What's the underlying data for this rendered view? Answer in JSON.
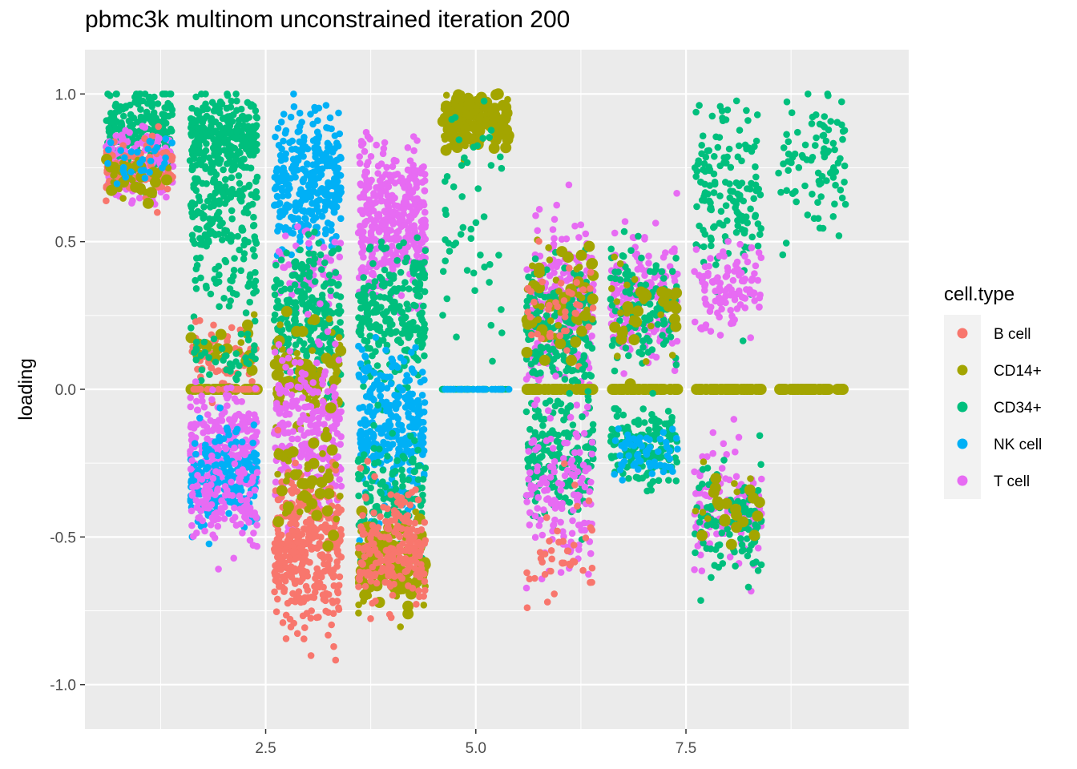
{
  "chart_data": {
    "type": "scatter",
    "title": "pbmc3k multinom unconstrained iteration 200",
    "xlabel": "",
    "ylabel": "loading",
    "xlim": [
      0.35,
      10.15
    ],
    "ylim": [
      -1.15,
      1.15
    ],
    "x_ticks": [
      2.5,
      5.0,
      7.5
    ],
    "x_tick_labels": [
      "2.5",
      "5.0",
      "7.5"
    ],
    "y_ticks": [
      1.0,
      0.5,
      0.0,
      -0.5,
      -1.0
    ],
    "y_tick_labels": [
      "1.0",
      "0.5",
      "0.0",
      "-0.5",
      "-1.0"
    ],
    "grid": true,
    "background": "#ebebeb",
    "legend": {
      "title": "cell.type",
      "position": "right",
      "entries": [
        {
          "label": "B cell",
          "color": "#F8766D"
        },
        {
          "label": "CD14+",
          "color": "#A3A500"
        },
        {
          "label": "CD34+",
          "color": "#00BF7D"
        },
        {
          "label": "NK cell",
          "color": "#00B0F6"
        },
        {
          "label": "T cell",
          "color": "#E76BF3"
        }
      ]
    },
    "series_colors": {
      "B cell": "#F8766D",
      "CD14+": "#A3A500",
      "CD34+": "#00BF7D",
      "NK cell": "#00B0F6",
      "T cell": "#E76BF3"
    },
    "point_groups": [
      {
        "x_center": 1,
        "y_center": 0.87,
        "y_spread": 0.08,
        "n": 220,
        "type": "CD34+"
      },
      {
        "x_center": 1,
        "y_center": 0.76,
        "y_spread": 0.06,
        "n": 150,
        "type": "T cell"
      },
      {
        "x_center": 1,
        "y_center": 0.74,
        "y_spread": 0.05,
        "n": 90,
        "type": "B cell"
      },
      {
        "x_center": 1,
        "y_center": 0.71,
        "y_spread": 0.04,
        "n": 40,
        "type": "CD14+"
      },
      {
        "x_center": 1,
        "y_center": 0.78,
        "y_spread": 0.05,
        "n": 30,
        "type": "NK cell"
      },
      {
        "x_center": 2,
        "y_center": 0.86,
        "y_spread": 0.07,
        "n": 260,
        "type": "CD34+"
      },
      {
        "x_center": 2,
        "y_center": 0.6,
        "y_spread": 0.1,
        "n": 160,
        "type": "CD34+"
      },
      {
        "x_center": 2,
        "y_center": 0.35,
        "y_spread": 0.07,
        "n": 40,
        "type": "CD34+"
      },
      {
        "x_center": 2,
        "y_center": 0.12,
        "y_spread": 0.06,
        "n": 70,
        "type": "B cell"
      },
      {
        "x_center": 2,
        "y_center": 0.14,
        "y_spread": 0.05,
        "n": 20,
        "type": "CD14+"
      },
      {
        "x_center": 2,
        "y_center": 0.12,
        "y_spread": 0.05,
        "n": 40,
        "type": "CD34+"
      },
      {
        "x_center": 2,
        "y_center": 0.0,
        "y_spread": 0.0,
        "n": 70,
        "type": "CD14+"
      },
      {
        "x_center": 2,
        "y_center": 0.0,
        "y_spread": 0.0,
        "n": 25,
        "type": "B cell"
      },
      {
        "x_center": 2,
        "y_center": -0.17,
        "y_spread": 0.08,
        "n": 220,
        "type": "T cell"
      },
      {
        "x_center": 2,
        "y_center": -0.3,
        "y_spread": 0.08,
        "n": 200,
        "type": "NK cell"
      },
      {
        "x_center": 2,
        "y_center": -0.38,
        "y_spread": 0.07,
        "n": 120,
        "type": "T cell"
      },
      {
        "x_center": 3,
        "y_center": 0.71,
        "y_spread": 0.11,
        "n": 320,
        "type": "NK cell"
      },
      {
        "x_center": 3,
        "y_center": 0.4,
        "y_spread": 0.07,
        "n": 60,
        "type": "T cell"
      },
      {
        "x_center": 3,
        "y_center": 0.24,
        "y_spread": 0.12,
        "n": 260,
        "type": "CD34+"
      },
      {
        "x_center": 3,
        "y_center": 0.05,
        "y_spread": 0.08,
        "n": 90,
        "type": "CD14+"
      },
      {
        "x_center": 3,
        "y_center": -0.15,
        "y_spread": 0.14,
        "n": 260,
        "type": "T cell"
      },
      {
        "x_center": 3,
        "y_center": -0.55,
        "y_spread": 0.12,
        "n": 380,
        "type": "B cell"
      },
      {
        "x_center": 3,
        "y_center": -0.3,
        "y_spread": 0.1,
        "n": 50,
        "type": "CD14+"
      },
      {
        "x_center": 4,
        "y_center": 0.58,
        "y_spread": 0.13,
        "n": 380,
        "type": "T cell"
      },
      {
        "x_center": 4,
        "y_center": 0.25,
        "y_spread": 0.12,
        "n": 240,
        "type": "CD34+"
      },
      {
        "x_center": 4,
        "y_center": -0.13,
        "y_spread": 0.13,
        "n": 300,
        "type": "NK cell"
      },
      {
        "x_center": 4,
        "y_center": -0.35,
        "y_spread": 0.1,
        "n": 120,
        "type": "CD34+"
      },
      {
        "x_center": 4,
        "y_center": -0.6,
        "y_spread": 0.08,
        "n": 140,
        "type": "CD14+"
      },
      {
        "x_center": 4,
        "y_center": -0.55,
        "y_spread": 0.1,
        "n": 200,
        "type": "B cell"
      },
      {
        "x_center": 5,
        "y_center": 0.91,
        "y_spread": 0.05,
        "n": 160,
        "type": "CD14+"
      },
      {
        "x_center": 5,
        "y_center": 0.55,
        "y_spread": 0.22,
        "n": 50,
        "type": "CD34+"
      },
      {
        "x_center": 5,
        "y_center": 0.0,
        "y_spread": 0.0,
        "n": 60,
        "type": "CD34+"
      },
      {
        "x_center": 5,
        "y_center": 0.0,
        "y_spread": 0.0,
        "n": 30,
        "type": "NK cell"
      },
      {
        "x_center": 6,
        "y_center": 0.28,
        "y_spread": 0.13,
        "n": 260,
        "type": "T cell"
      },
      {
        "x_center": 6,
        "y_center": 0.2,
        "y_spread": 0.12,
        "n": 200,
        "type": "CD34+"
      },
      {
        "x_center": 6,
        "y_center": 0.3,
        "y_spread": 0.1,
        "n": 60,
        "type": "CD14+"
      },
      {
        "x_center": 6,
        "y_center": 0.25,
        "y_spread": 0.1,
        "n": 40,
        "type": "B cell"
      },
      {
        "x_center": 6,
        "y_center": 0.0,
        "y_spread": 0.0,
        "n": 70,
        "type": "CD14+"
      },
      {
        "x_center": 6,
        "y_center": -0.25,
        "y_spread": 0.1,
        "n": 180,
        "type": "CD34+"
      },
      {
        "x_center": 6,
        "y_center": -0.35,
        "y_spread": 0.14,
        "n": 130,
        "type": "T cell"
      },
      {
        "x_center": 6,
        "y_center": -0.55,
        "y_spread": 0.1,
        "n": 40,
        "type": "B cell"
      },
      {
        "x_center": 7,
        "y_center": 0.3,
        "y_spread": 0.1,
        "n": 200,
        "type": "T cell"
      },
      {
        "x_center": 7,
        "y_center": 0.28,
        "y_spread": 0.1,
        "n": 130,
        "type": "CD34+"
      },
      {
        "x_center": 7,
        "y_center": 0.25,
        "y_spread": 0.08,
        "n": 40,
        "type": "CD14+"
      },
      {
        "x_center": 7,
        "y_center": 0.0,
        "y_spread": 0.0,
        "n": 70,
        "type": "CD14+"
      },
      {
        "x_center": 7,
        "y_center": -0.2,
        "y_spread": 0.07,
        "n": 150,
        "type": "CD34+"
      },
      {
        "x_center": 7,
        "y_center": -0.2,
        "y_spread": 0.05,
        "n": 60,
        "type": "NK cell"
      },
      {
        "x_center": 8,
        "y_center": 0.68,
        "y_spread": 0.14,
        "n": 150,
        "type": "CD34+"
      },
      {
        "x_center": 8,
        "y_center": 0.32,
        "y_spread": 0.07,
        "n": 110,
        "type": "T cell"
      },
      {
        "x_center": 8,
        "y_center": 0.0,
        "y_spread": 0.0,
        "n": 70,
        "type": "CD14+"
      },
      {
        "x_center": 8,
        "y_center": -0.4,
        "y_spread": 0.1,
        "n": 120,
        "type": "T cell"
      },
      {
        "x_center": 8,
        "y_center": -0.45,
        "y_spread": 0.1,
        "n": 100,
        "type": "CD34+"
      },
      {
        "x_center": 8,
        "y_center": -0.4,
        "y_spread": 0.07,
        "n": 30,
        "type": "CD14+"
      },
      {
        "x_center": 9,
        "y_center": 0.78,
        "y_spread": 0.12,
        "n": 90,
        "type": "CD34+"
      },
      {
        "x_center": 9,
        "y_center": 0.0,
        "y_spread": 0.0,
        "n": 90,
        "type": "CD14+"
      }
    ]
  }
}
